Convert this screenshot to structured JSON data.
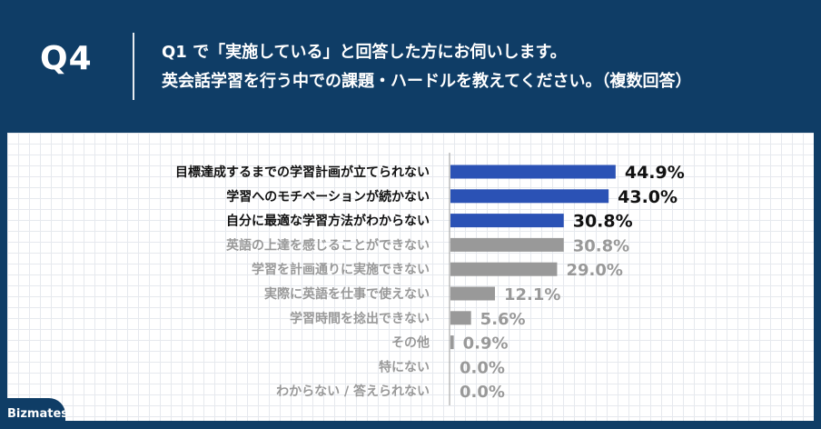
{
  "header": {
    "q_label": "Q4",
    "question_line1": "Q1 で「実施している」と回答した方にお伺いします。",
    "question_line2": "英会話学習を行う中での課題・ハードルを教えてください。（複数回答）"
  },
  "brand": {
    "logo_text": "Bizmates"
  },
  "colors": {
    "header_bg": "#0f3d66",
    "highlight": "#2b52b5",
    "other": "#999999"
  },
  "chart_data": {
    "type": "bar",
    "orientation": "horizontal",
    "categories": [
      "目標達成するまでの学習計画が立てられない",
      "学習へのモチベーションが続かない",
      "自分に最適な学習方法がわからない",
      "英語の上達を感じることができない",
      "学習を計画通りに実施できない",
      "実際に英語を仕事で使えない",
      "学習時間を捻出できない",
      "その他",
      "特にない",
      "わからない / 答えられない"
    ],
    "values": [
      44.9,
      43.0,
      30.8,
      30.8,
      29.0,
      12.1,
      5.6,
      0.9,
      0.0,
      0.0
    ],
    "value_labels": [
      "44.9%",
      "43.0%",
      "30.8%",
      "30.8%",
      "29.0%",
      "12.1%",
      "5.6%",
      "0.9%",
      "0.0%",
      "0.0%"
    ],
    "highlighted": [
      true,
      true,
      true,
      false,
      false,
      false,
      false,
      false,
      false,
      false
    ],
    "grid": true
  }
}
